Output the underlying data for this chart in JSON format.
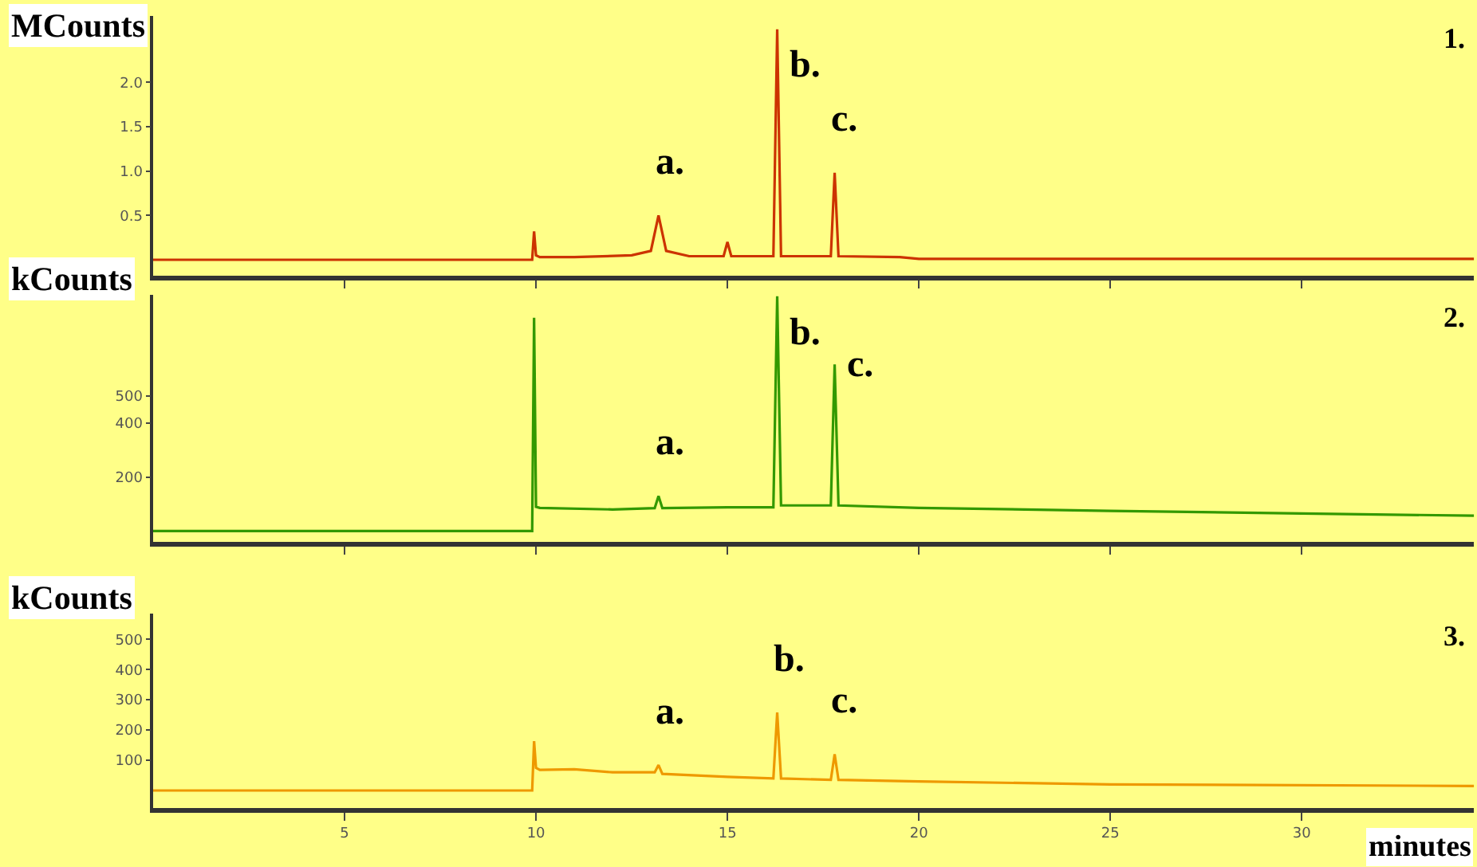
{
  "chart_data": [
    {
      "type": "line",
      "ylabel": "MCounts",
      "grid": false,
      "tick_labels": "y",
      "xlim": [
        0,
        34.5
      ],
      "xticks": [
        5,
        10,
        15,
        20,
        25,
        30
      ],
      "ylim": [
        -0.18,
        2.75
      ],
      "yticks": [
        {
          "value": 0.5,
          "label": "0.5"
        },
        {
          "value": 1,
          "label": "1.0"
        },
        {
          "value": 1.5,
          "label": "1.5"
        },
        {
          "value": 2,
          "label": "2.0"
        }
      ],
      "annotations": [
        "1.",
        {
          "text": "a.",
          "x": 13.2,
          "y": 0.5
        },
        {
          "text": "b.",
          "x": 16.3,
          "y": 2.6
        },
        {
          "text": "c.",
          "x": 17.8,
          "y": 0.98
        }
      ],
      "series": [
        {
          "color": "#cc3300",
          "x": [
            0,
            9.9,
            9.95,
            10.0,
            10.1,
            11,
            12.5,
            13.0,
            13.2,
            13.4,
            14,
            14.9,
            15.0,
            15.1,
            16.2,
            16.3,
            16.4,
            17.7,
            17.8,
            17.9,
            19.5,
            20,
            34.5
          ],
          "values": [
            0,
            0,
            0.32,
            0.05,
            0.03,
            0.03,
            0.05,
            0.1,
            0.5,
            0.1,
            0.04,
            0.04,
            0.2,
            0.04,
            0.04,
            2.6,
            0.04,
            0.04,
            0.98,
            0.04,
            0.03,
            0.01,
            0.01
          ]
        }
      ]
    },
    {
      "type": "line",
      "ylabel": "kCounts",
      "grid": false,
      "tick_labels": "y",
      "xlim": [
        0,
        34.5
      ],
      "xticks": [
        5,
        10,
        15,
        20,
        25,
        30
      ],
      "ylim": [
        -40,
        875
      ],
      "yticks": [
        200,
        400,
        500
      ],
      "annotations": [
        "2.",
        {
          "text": "a.",
          "x": 13.2,
          "y": 130
        },
        {
          "text": "b.",
          "x": 16.3,
          "y": 870
        },
        {
          "text": "c.",
          "x": 17.8,
          "y": 617
        }
      ],
      "series": [
        {
          "color": "#339900",
          "x": [
            0,
            9.9,
            9.95,
            10.0,
            10.1,
            12,
            13.1,
            13.2,
            13.3,
            15,
            16.2,
            16.3,
            16.4,
            17.7,
            17.8,
            17.9,
            20,
            25,
            30,
            34.5
          ],
          "values": [
            0,
            0,
            790,
            90,
            86,
            80,
            85,
            130,
            85,
            88,
            88,
            870,
            95,
            95,
            617,
            95,
            86,
            75,
            65,
            57
          ]
        }
      ]
    },
    {
      "type": "line",
      "ylabel": "kCounts",
      "xlabel": "minutes",
      "grid": false,
      "xlim": [
        0,
        34.5
      ],
      "xticks": [
        5,
        10,
        15,
        20,
        25,
        30
      ],
      "ylim": [
        -58,
        585
      ],
      "yticks": [
        100,
        200,
        300,
        400,
        500
      ],
      "annotations": [
        "3.",
        {
          "text": "a.",
          "x": 13.2,
          "y": 84
        },
        {
          "text": "b.",
          "x": 16.3,
          "y": 258
        },
        {
          "text": "c.",
          "x": 17.8,
          "y": 120
        }
      ],
      "series": [
        {
          "color": "#ee9900",
          "x": [
            0,
            9.9,
            9.95,
            10.0,
            10.1,
            11,
            12,
            13.1,
            13.2,
            13.3,
            15,
            16.2,
            16.3,
            16.4,
            17.7,
            17.8,
            17.9,
            20,
            25,
            34.5
          ],
          "values": [
            0,
            0,
            163,
            75,
            68,
            70,
            60,
            60,
            84,
            55,
            45,
            40,
            258,
            40,
            35,
            120,
            35,
            30,
            20,
            15
          ]
        }
      ]
    }
  ]
}
